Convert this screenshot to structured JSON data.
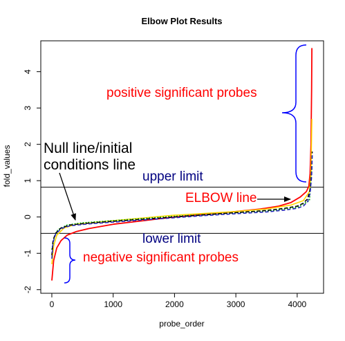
{
  "chart_data": {
    "type": "line",
    "title": "Elbow Plot Results",
    "xlabel": "probe_order",
    "ylabel": "fold_values",
    "xlim": [
      -180,
      4430
    ],
    "ylim": [
      -2.1,
      4.85
    ],
    "x_ticks": [
      0,
      1000,
      2000,
      3000,
      4000
    ],
    "x_tick_labels": [
      "0",
      "1000",
      "2000",
      "3000",
      "4000"
    ],
    "y_ticks": [
      -2,
      -1,
      0,
      1,
      2,
      3,
      4
    ],
    "y_tick_labels": [
      "-2",
      "-1",
      "0",
      "1",
      "2",
      "3",
      "4"
    ],
    "grid": false,
    "hlines": [
      {
        "name": "upper limit",
        "y": 0.82,
        "color": "#000000"
      },
      {
        "name": "lower limit",
        "y": -0.45,
        "color": "#000000"
      }
    ],
    "series": [
      {
        "color": "#ff0000",
        "style": "solid",
        "x": [
          0,
          30,
          80,
          150,
          250,
          400,
          600,
          1000,
          1500,
          2000,
          2500,
          3000,
          3400,
          3700,
          3900,
          4050,
          4150,
          4190,
          4210,
          4225,
          4235,
          4240
        ],
        "y": [
          -1.75,
          -1.2,
          -0.85,
          -0.65,
          -0.5,
          -0.4,
          -0.32,
          -0.2,
          -0.1,
          0.0,
          0.08,
          0.15,
          0.22,
          0.3,
          0.4,
          0.55,
          0.7,
          0.85,
          1.2,
          2.0,
          3.5,
          4.65
        ]
      },
      {
        "color": "#ffd700",
        "style": "solid",
        "x": [
          0,
          30,
          80,
          200,
          400,
          1000,
          2000,
          3000,
          3500,
          3900,
          4100,
          4200,
          4225,
          4240
        ],
        "y": [
          -1.3,
          -0.8,
          -0.5,
          -0.3,
          -0.2,
          -0.1,
          0.05,
          0.15,
          0.22,
          0.33,
          0.45,
          0.7,
          1.2,
          2.7
        ]
      },
      {
        "color": "#00aa00",
        "style": "dotted",
        "x": [
          0,
          40,
          100,
          250,
          500,
          1000,
          2000,
          3000,
          3600,
          4000,
          4200,
          4240
        ],
        "y": [
          -0.9,
          -0.55,
          -0.35,
          -0.22,
          -0.16,
          -0.1,
          0.02,
          0.12,
          0.18,
          0.27,
          0.45,
          1.4
        ]
      },
      {
        "color": "#000000",
        "style": "dashed",
        "x": [
          0,
          20,
          60,
          150,
          300,
          600,
          1000,
          1500,
          2000,
          2500,
          3000,
          3500,
          3800,
          4000,
          4100,
          4170,
          4210,
          4235,
          4245
        ],
        "y": [
          -1.05,
          -0.65,
          -0.45,
          -0.3,
          -0.22,
          -0.17,
          -0.12,
          -0.06,
          0.0,
          0.06,
          0.12,
          0.18,
          0.24,
          0.3,
          0.38,
          0.5,
          0.75,
          1.25,
          1.8
        ]
      },
      {
        "color": "#2222bb",
        "style": "dashed",
        "x": [
          0,
          20,
          60,
          150,
          300,
          600,
          1000,
          1500,
          2000,
          2500,
          3000,
          3500,
          3800,
          4000,
          4100,
          4170,
          4210,
          4235,
          4245
        ],
        "y": [
          -1.15,
          -0.7,
          -0.48,
          -0.32,
          -0.24,
          -0.19,
          -0.14,
          -0.08,
          -0.02,
          0.04,
          0.09,
          0.14,
          0.19,
          0.24,
          0.3,
          0.42,
          0.65,
          1.1,
          1.7
        ]
      }
    ],
    "annotations": {
      "positive": "positive significant probes",
      "null_line_1": "Null line/initial",
      "null_line_2": "conditions line",
      "upper_limit": "upper limit",
      "elbow": "ELBOW line",
      "lower_limit": "lower limit",
      "negative": "negative significant probes"
    },
    "annotation_colors": {
      "positive": "#ff0000",
      "negative": "#ff0000",
      "elbow": "#ff0000",
      "limits": "#000080",
      "null_line": "#000000",
      "braces": "#0000ff"
    }
  }
}
